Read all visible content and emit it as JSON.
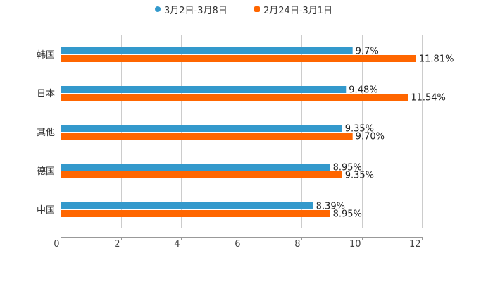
{
  "legend": {
    "items": [
      {
        "label": "3月2日-3月8日",
        "color": "#3399CC",
        "marker": "circle",
        "x": 220
      },
      {
        "label": "2月24日-3月1日",
        "color": "#FF6600",
        "marker": "square",
        "x": 361
      }
    ]
  },
  "colors": {
    "grid": "#cccccc",
    "axis": "#999999",
    "text": "#333333",
    "value_text": "#222222"
  },
  "chart_data": {
    "type": "bar",
    "orientation": "horizontal",
    "title": "",
    "xlabel": "",
    "ylabel": "",
    "categories": [
      "韩国",
      "日本",
      "其他",
      "德国",
      "中国"
    ],
    "series": [
      {
        "name": "3月2日-3月8日",
        "color": "#3399CC",
        "values": [
          9.7,
          9.48,
          9.35,
          8.95,
          8.39
        ],
        "labels": [
          "9.7%",
          "9.48%",
          "9.35%",
          "8.95%",
          "8.39%"
        ]
      },
      {
        "name": "2月24日-3月1日",
        "color": "#FF6600",
        "values": [
          11.81,
          11.54,
          9.7,
          9.35,
          8.95
        ],
        "labels": [
          "11.81%",
          "11.54%",
          "9.70%",
          "9.35%",
          "8.95%"
        ]
      }
    ],
    "xlim": [
      0,
      12
    ],
    "xticks": [
      0,
      2,
      4,
      6,
      8,
      10,
      12
    ],
    "grid": true,
    "legend_position": "top"
  }
}
